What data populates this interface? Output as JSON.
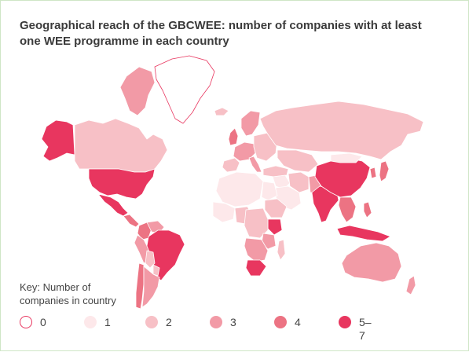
{
  "title": "Geographical reach of the GBCWEE: number of companies with at least one WEE programme in each country",
  "key": {
    "label": "Key: Number of companies in country",
    "items": [
      {
        "label": "0",
        "color": "#ffffff",
        "stroke": "#e8365f"
      },
      {
        "label": "1",
        "color": "#fde8ea",
        "stroke": "#fde8ea"
      },
      {
        "label": "2",
        "color": "#f7c0c6",
        "stroke": "#f7c0c6"
      },
      {
        "label": "3",
        "color": "#f29aa6",
        "stroke": "#f29aa6"
      },
      {
        "label": "4",
        "color": "#ec7383",
        "stroke": "#ec7383"
      },
      {
        "label": "5–7",
        "color": "#e8365f",
        "stroke": "#e8365f"
      }
    ]
  },
  "countries": [
    {
      "name": "Greenland",
      "level": 0
    },
    {
      "name": "Alaska",
      "level": 5
    },
    {
      "name": "Canada",
      "level": 2
    },
    {
      "name": "Arctic Islands",
      "level": 3
    },
    {
      "name": "United States",
      "level": 5
    },
    {
      "name": "Mexico",
      "level": 5
    },
    {
      "name": "Central America",
      "level": 4
    },
    {
      "name": "Colombia",
      "level": 4
    },
    {
      "name": "Venezuela",
      "level": 3
    },
    {
      "name": "Peru",
      "level": 3
    },
    {
      "name": "Brazil",
      "level": 5
    },
    {
      "name": "Bolivia",
      "level": 2
    },
    {
      "name": "Paraguay",
      "level": 2
    },
    {
      "name": "Chile",
      "level": 4
    },
    {
      "name": "Argentina",
      "level": 3
    },
    {
      "name": "Iceland",
      "level": 2
    },
    {
      "name": "United Kingdom",
      "level": 4
    },
    {
      "name": "Scandinavia",
      "level": 3
    },
    {
      "name": "Western Europe",
      "level": 3
    },
    {
      "name": "Iberia",
      "level": 2
    },
    {
      "name": "Italy",
      "level": 3
    },
    {
      "name": "Eastern Europe",
      "level": 2
    },
    {
      "name": "Russia",
      "level": 2
    },
    {
      "name": "Kazakhstan",
      "level": 2
    },
    {
      "name": "Turkey",
      "level": 2
    },
    {
      "name": "Middle East",
      "level": 1
    },
    {
      "name": "Saudi Arabia",
      "level": 1
    },
    {
      "name": "Iran",
      "level": 2
    },
    {
      "name": "Pakistan",
      "level": 3
    },
    {
      "name": "India",
      "level": 5
    },
    {
      "name": "China",
      "level": 5
    },
    {
      "name": "Mongolia",
      "level": 1
    },
    {
      "name": "Korea",
      "level": 4
    },
    {
      "name": "Japan",
      "level": 4
    },
    {
      "name": "Southeast Asia",
      "level": 4
    },
    {
      "name": "Indonesia",
      "level": 5
    },
    {
      "name": "Philippines",
      "level": 4
    },
    {
      "name": "Australia",
      "level": 3
    },
    {
      "name": "New Zealand",
      "level": 3
    },
    {
      "name": "North Africa",
      "level": 1
    },
    {
      "name": "West Africa",
      "level": 1
    },
    {
      "name": "Nigeria",
      "level": 2
    },
    {
      "name": "Egypt",
      "level": 1
    },
    {
      "name": "Ethiopia",
      "level": 2
    },
    {
      "name": "Kenya",
      "level": 5
    },
    {
      "name": "Central Africa",
      "level": 2
    },
    {
      "name": "Tanzania",
      "level": 3
    },
    {
      "name": "Southern Africa",
      "level": 3
    },
    {
      "name": "South Africa",
      "level": 5
    },
    {
      "name": "Madagascar",
      "level": 2
    }
  ]
}
